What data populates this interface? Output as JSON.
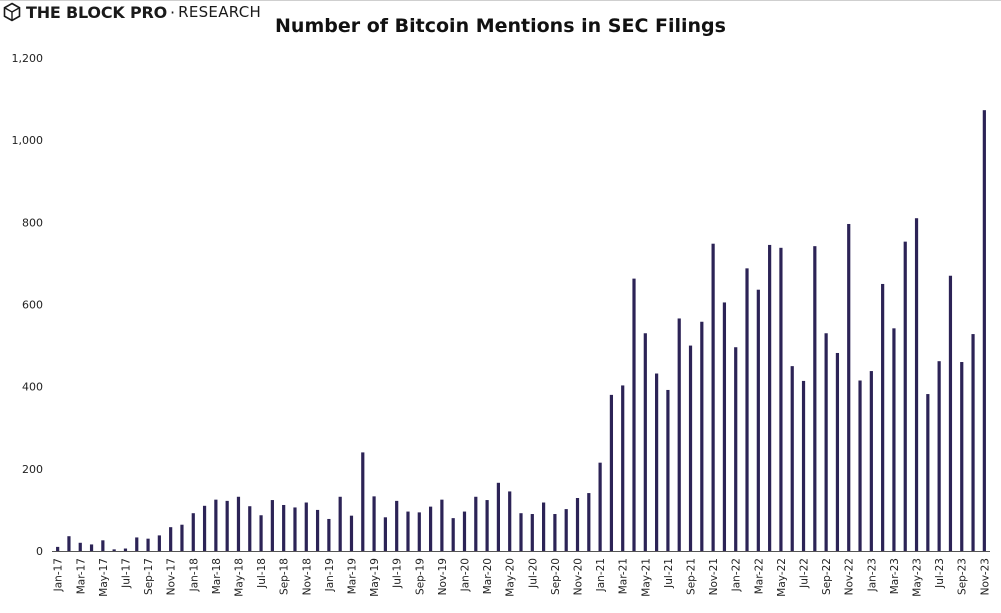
{
  "header": {
    "brand": "THE BLOCK PRO",
    "brand_separator": "·",
    "brand_suffix": "RESEARCH",
    "brand_icon": "cube-logo-icon"
  },
  "chart_data": {
    "type": "bar",
    "title": "Number of Bitcoin Mentions in SEC Filings",
    "xlabel": "",
    "ylabel": "",
    "ylim": [
      0,
      1200
    ],
    "y_ticks": [
      "0",
      "200",
      "400",
      "600",
      "800",
      "1,000",
      "1,200"
    ],
    "y_tick_values": [
      0,
      200,
      400,
      600,
      800,
      1000,
      1200
    ],
    "bar_color": "#2c2356",
    "grid": false,
    "legend": "none",
    "categories": [
      "Jan-17",
      "Feb-17",
      "Mar-17",
      "Apr-17",
      "May-17",
      "Jun-17",
      "Jul-17",
      "Aug-17",
      "Sep-17",
      "Oct-17",
      "Nov-17",
      "Dec-17",
      "Jan-18",
      "Feb-18",
      "Mar-18",
      "Apr-18",
      "May-18",
      "Jun-18",
      "Jul-18",
      "Aug-18",
      "Sep-18",
      "Oct-18",
      "Nov-18",
      "Dec-18",
      "Jan-19",
      "Feb-19",
      "Mar-19",
      "Apr-19",
      "May-19",
      "Jun-19",
      "Jul-19",
      "Aug-19",
      "Sep-19",
      "Oct-19",
      "Nov-19",
      "Dec-19",
      "Jan-20",
      "Feb-20",
      "Mar-20",
      "Apr-20",
      "May-20",
      "Jun-20",
      "Jul-20",
      "Aug-20",
      "Sep-20",
      "Oct-20",
      "Nov-20",
      "Dec-20",
      "Jan-21",
      "Feb-21",
      "Mar-21",
      "Apr-21",
      "May-21",
      "Jun-21",
      "Jul-21",
      "Aug-21",
      "Sep-21",
      "Oct-21",
      "Nov-21",
      "Dec-21",
      "Jan-22",
      "Feb-22",
      "Mar-22",
      "Apr-22",
      "May-22",
      "Jun-22",
      "Jul-22",
      "Aug-22",
      "Sep-22",
      "Oct-22",
      "Nov-22",
      "Dec-22",
      "Jan-23",
      "Feb-23",
      "Mar-23",
      "Apr-23",
      "May-23",
      "Jun-23",
      "Jul-23",
      "Aug-23",
      "Sep-23",
      "Oct-23",
      "Nov-23"
    ],
    "values": [
      10,
      36,
      20,
      16,
      26,
      4,
      6,
      33,
      30,
      38,
      58,
      64,
      92,
      110,
      125,
      122,
      132,
      109,
      87,
      124,
      112,
      106,
      118,
      100,
      78,
      132,
      86,
      240,
      133,
      82,
      122,
      96,
      94,
      108,
      125,
      80,
      96,
      132,
      124,
      166,
      145,
      92,
      90,
      118,
      90,
      102,
      129,
      141,
      215,
      380,
      403,
      663,
      530,
      432,
      392,
      566,
      500,
      558,
      748,
      605,
      496,
      688,
      636,
      745,
      738,
      450,
      414,
      742,
      530,
      482,
      796,
      415,
      438,
      650,
      542,
      753,
      810,
      382,
      462,
      670,
      460,
      528,
      1073
    ],
    "x_tick_labels": [
      "Jan-17",
      "Mar-17",
      "May-17",
      "Jul-17",
      "Sep-17",
      "Nov-17",
      "Jan-18",
      "Mar-18",
      "May-18",
      "Jul-18",
      "Sep-18",
      "Nov-18",
      "Jan-19",
      "Mar-19",
      "May-19",
      "Jul-19",
      "Sep-19",
      "Nov-19",
      "Jan-20",
      "Mar-20",
      "May-20",
      "Jul-20",
      "Sep-20",
      "Nov-20",
      "Jan-21",
      "Mar-21",
      "May-21",
      "Jul-21",
      "Sep-21",
      "Nov-21",
      "Jan-22",
      "Mar-22",
      "May-22",
      "Jul-22",
      "Sep-22",
      "Nov-22",
      "Jan-23",
      "Mar-23",
      "May-23",
      "Jul-23",
      "Sep-23",
      "Nov-23"
    ]
  }
}
